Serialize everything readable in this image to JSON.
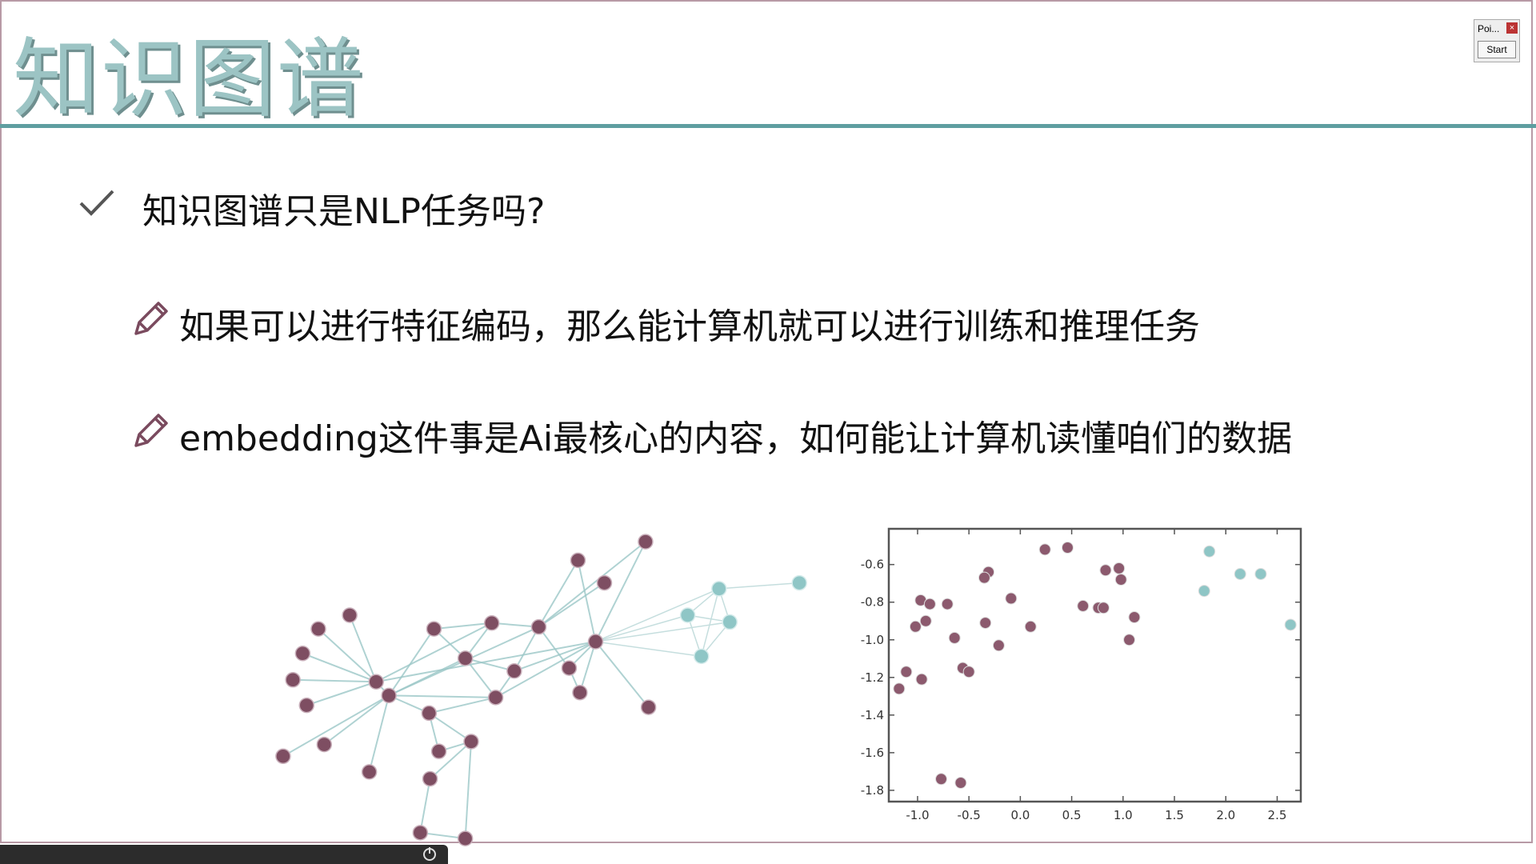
{
  "header": {
    "title": "知识图谱"
  },
  "widget": {
    "title": "Poi...",
    "close": "×",
    "button": "Start"
  },
  "bullets": [
    {
      "text": "知识图谱只是NLP任务吗?"
    },
    {
      "text": "如果可以进行特征编码，那么能计算机就可以进行训练和推理任务"
    },
    {
      "text": "embedding这件事是Ai最核心的内容，如何能让计算机读懂咱们的数据"
    }
  ],
  "chart_data": {
    "type": "scatter",
    "xlim": [
      -1.28,
      2.73
    ],
    "ylim": [
      -1.86,
      -0.41
    ],
    "xticks": [
      {
        "value": -1,
        "label": "-1.0"
      },
      -0.5,
      {
        "value": 0,
        "label": "0.0"
      },
      0.5,
      {
        "value": 1,
        "label": "1.0"
      },
      1.5,
      {
        "value": 2,
        "label": "2.0"
      },
      2.5
    ],
    "yticks": [
      -0.6,
      -0.8,
      {
        "value": -1,
        "label": "-1.0"
      },
      -1.2,
      -1.4,
      -1.6,
      -1.8
    ],
    "grid": false,
    "series": [
      {
        "color": "#8c5a6e",
        "x": [
          0.24,
          0.46,
          0.83,
          0.96,
          0.98,
          0.61,
          0.76,
          0.81,
          1.11,
          1.06,
          -0.31,
          -0.35,
          -0.09,
          0.1,
          -0.34,
          -0.21,
          -0.64,
          -0.97,
          -0.88,
          -0.71,
          -0.92,
          -1.02,
          -1.11,
          -0.96,
          -1.18,
          -0.56,
          -0.5,
          -0.77,
          -0.58
        ],
        "y": [
          -0.52,
          -0.51,
          -0.63,
          -0.62,
          -0.68,
          -0.82,
          -0.83,
          -0.83,
          -0.88,
          -1.0,
          -0.64,
          -0.67,
          -0.78,
          -0.93,
          -0.91,
          -1.03,
          -0.99,
          -0.79,
          -0.81,
          -0.81,
          -0.9,
          -0.93,
          -1.17,
          -1.21,
          -1.26,
          -1.15,
          -1.17,
          -1.74,
          -1.76
        ]
      },
      {
        "color": "#8fc6c6",
        "x": [
          1.84,
          2.14,
          2.34,
          1.79,
          2.63
        ],
        "y": [
          -0.53,
          -0.65,
          -0.65,
          -0.74,
          -0.92
        ]
      }
    ]
  }
}
